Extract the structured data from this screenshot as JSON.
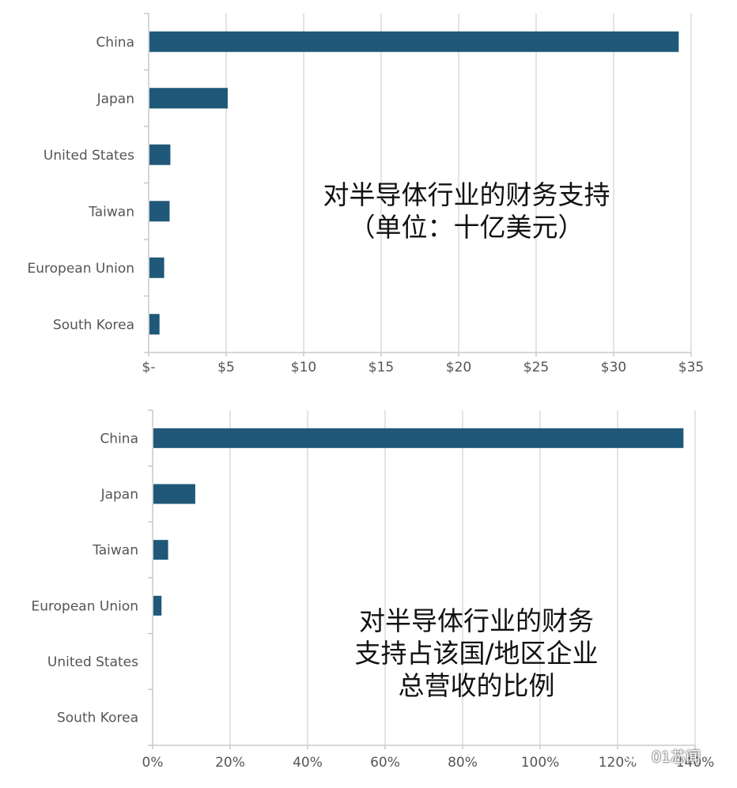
{
  "chart_data": [
    {
      "type": "bar",
      "orientation": "horizontal",
      "title": "对半导体行业的财务支持\n（单位：十亿美元）",
      "categories": [
        "China",
        "Japan",
        "United States",
        "Taiwan",
        "European Union",
        "South Korea"
      ],
      "values": [
        34.2,
        5.1,
        1.4,
        1.35,
        1.0,
        0.7
      ],
      "xlim": [
        0,
        35
      ],
      "xticks": [
        0,
        5,
        10,
        15,
        20,
        25,
        30,
        35
      ],
      "xtick_labels": [
        "$-",
        "$5",
        "$10",
        "$15",
        "$20",
        "$25",
        "$30",
        "$35"
      ],
      "grid": true,
      "legend": "none",
      "bar_color": "#1f5878"
    },
    {
      "type": "bar",
      "orientation": "horizontal",
      "title": "对半导体行业的财务\n支持占该国/地区企业\n总营收的比例",
      "categories": [
        "China",
        "Japan",
        "Taiwan",
        "European Union",
        "United States",
        "South Korea"
      ],
      "values": [
        137,
        11,
        4,
        2.3,
        0,
        0
      ],
      "xlim": [
        0,
        140
      ],
      "xticks": [
        0,
        20,
        40,
        60,
        80,
        100,
        120,
        140
      ],
      "xtick_labels": [
        "0%",
        "20%",
        "40%",
        "60%",
        "80%",
        "100%",
        "120%",
        "140%"
      ],
      "grid": true,
      "legend": "none",
      "bar_color": "#1f5878"
    }
  ],
  "watermark": {
    "text": "01芯闻",
    "icon": "wechat-icon"
  }
}
